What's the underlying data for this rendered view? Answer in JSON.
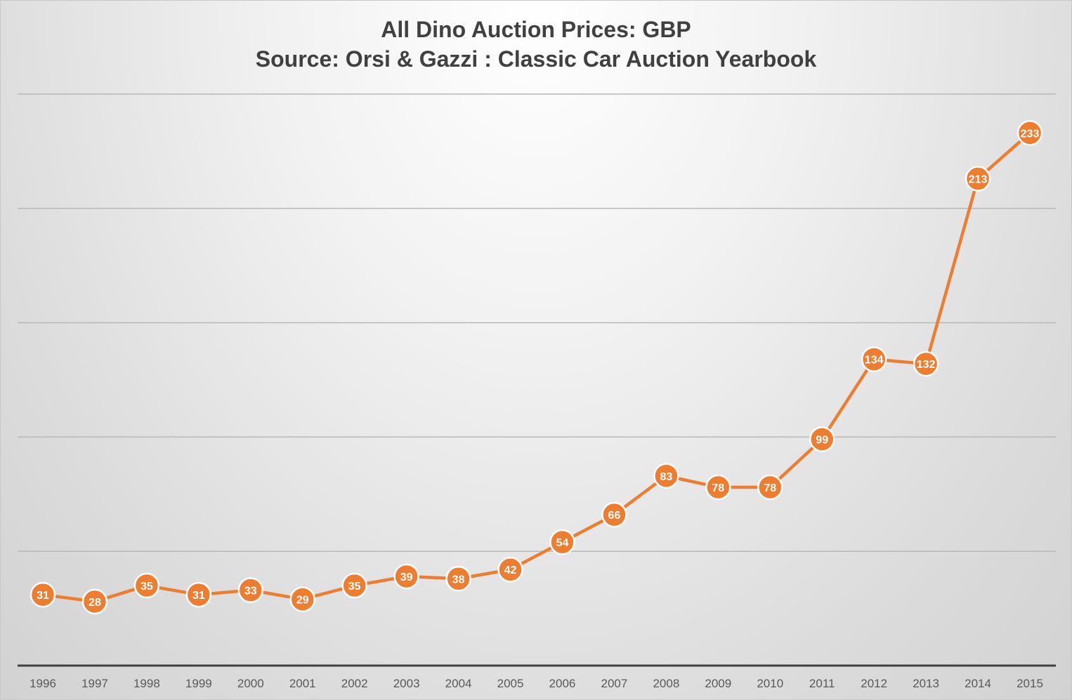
{
  "chart_data": {
    "type": "line",
    "title_line1": "All Dino Auction Prices: GBP",
    "title_line2": "Source: Orsi & Gazzi : Classic Car Auction Yearbook",
    "xlabel": "",
    "ylabel": "",
    "categories": [
      "1996",
      "1997",
      "1998",
      "1999",
      "2000",
      "2001",
      "2002",
      "2003",
      "2004",
      "2005",
      "2006",
      "2007",
      "2008",
      "2009",
      "2010",
      "2011",
      "2012",
      "2013",
      "2014",
      "2015"
    ],
    "series": [
      {
        "name": "All Dino Auction Prices",
        "color": "#ed7d31",
        "values": [
          31,
          28,
          35,
          31,
          33,
          29,
          35,
          39,
          38,
          42,
          54,
          66,
          83,
          78,
          78,
          99,
          134,
          132,
          213,
          233
        ]
      }
    ],
    "ylim": [
      0,
      250
    ],
    "y_gridlines": [
      50,
      100,
      150,
      200,
      250
    ],
    "y_tick_labels_shown": false,
    "grid": true,
    "legend": "none",
    "data_labels": "inside-markers"
  }
}
